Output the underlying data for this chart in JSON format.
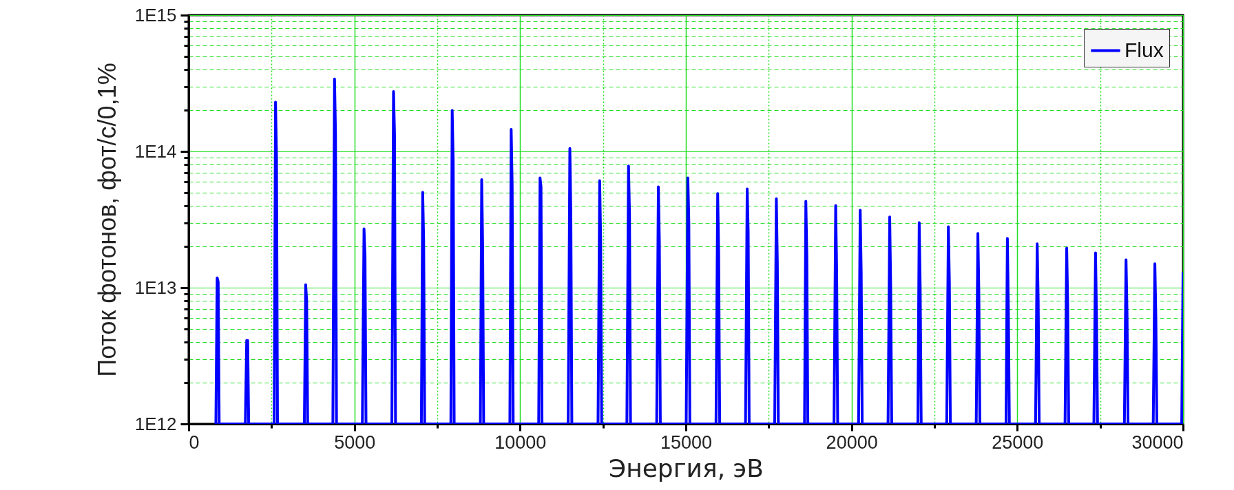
{
  "chart_data": {
    "type": "line",
    "xlabel": "Энергия, эВ",
    "ylabel": "Поток фотонов, фот/с/0,1%",
    "log": "y",
    "grid": true,
    "legend": "top right",
    "xlim": [
      0,
      30000
    ],
    "ylim": [
      1000000000000.0,
      1000000000000000.0
    ],
    "xticks": [
      0,
      {
        "value": 2500,
        "label": null
      },
      5000,
      {
        "value": 7500,
        "label": null
      },
      10000,
      {
        "value": 12500,
        "label": null
      },
      15000,
      {
        "value": 17500,
        "label": null
      },
      20000,
      {
        "value": 22500,
        "label": null
      },
      25000,
      {
        "value": 27500,
        "label": null
      },
      30000
    ],
    "yticks": [
      {
        "value": 1000000000000.0,
        "label": "1E12"
      },
      {
        "value": 2000000000000.0,
        "label": null
      },
      {
        "value": 3000000000000.0,
        "label": null
      },
      {
        "value": 4000000000000.0,
        "label": null
      },
      {
        "value": 5000000000000.0,
        "label": null
      },
      {
        "value": 6000000000000.0,
        "label": null
      },
      {
        "value": 7000000000000.0,
        "label": null
      },
      {
        "value": 8000000000000.0,
        "label": null
      },
      {
        "value": 9000000000000.0,
        "label": null
      },
      {
        "value": 10000000000000.0,
        "label": "1E13"
      },
      {
        "value": 20000000000000.0,
        "label": null
      },
      {
        "value": 30000000000000.0,
        "label": null
      },
      {
        "value": 40000000000000.0,
        "label": null
      },
      {
        "value": 50000000000000.0,
        "label": null
      },
      {
        "value": 60000000000000.0,
        "label": null
      },
      {
        "value": 70000000000000.0,
        "label": null
      },
      {
        "value": 80000000000000.0,
        "label": null
      },
      {
        "value": 90000000000000.0,
        "label": null
      },
      {
        "value": 100000000000000.0,
        "label": "1E14"
      },
      {
        "value": 200000000000000.0,
        "label": null
      },
      {
        "value": 300000000000000.0,
        "label": null
      },
      {
        "value": 400000000000000.0,
        "label": null
      },
      {
        "value": 500000000000000.0,
        "label": null
      },
      {
        "value": 600000000000000.0,
        "label": null
      },
      {
        "value": 700000000000000.0,
        "label": null
      },
      {
        "value": 800000000000000.0,
        "label": null
      },
      {
        "value": 900000000000000.0,
        "label": null
      },
      {
        "value": 1000000000000000.0,
        "label": "1E15"
      }
    ],
    "x": [
      820,
      860,
      890,
      920,
      1710,
      1750,
      1780,
      1810,
      2580,
      2620,
      2650,
      2680,
      3490,
      3530,
      3560,
      3590,
      4350,
      4400,
      4430,
      4460,
      5240,
      5290,
      5320,
      5350,
      6130,
      6180,
      6210,
      6240,
      7020,
      7060,
      7090,
      7120,
      7910,
      7950,
      7980,
      8010,
      8800,
      8840,
      8870,
      8900,
      9690,
      9730,
      9760,
      9790,
      10560,
      10600,
      10630,
      10660,
      11450,
      11500,
      11530,
      11560,
      12350,
      12400,
      12430,
      12460,
      13220,
      13270,
      13300,
      13330,
      14120,
      14170,
      14200,
      14230,
      15010,
      15060,
      15090,
      15120,
      15910,
      15960,
      15990,
      16020,
      16800,
      16850,
      16880,
      16910,
      17680,
      17730,
      17760,
      17790,
      18580,
      18620,
      18650,
      18680,
      19470,
      19520,
      19550,
      19580,
      20210,
      20260,
      20290,
      20320,
      21100,
      21150,
      21180,
      21210,
      22000,
      22040,
      22070,
      22100,
      22870,
      22920,
      22950,
      22980,
      23760,
      23810,
      23840,
      23870,
      24660,
      24700,
      24730,
      24760,
      25550,
      25600,
      25630,
      25660,
      26440,
      26490,
      26520,
      26550,
      27310,
      27360,
      27390,
      27420,
      28230,
      28280,
      28310,
      28340,
      29100,
      29150,
      29180,
      29210,
      29960,
      30000
    ],
    "series": [
      {
        "name": "Flux",
        "color": "#0000ff",
        "values": [
          1000000000000.0,
          11800000000000.0,
          11000000000000.0,
          1000000000000.0,
          1000000000000.0,
          4100000000000.0,
          4100000000000.0,
          1000000000000.0,
          1000000000000.0,
          230000000000000.0,
          90000000000000.0,
          1000000000000.0,
          1000000000000.0,
          10500000000000.0,
          8000000000000.0,
          1000000000000.0,
          1000000000000.0,
          340000000000000.0,
          135000000000000.0,
          1000000000000.0,
          1000000000000.0,
          27000000000000.0,
          17000000000000.0,
          1000000000000.0,
          1000000000000.0,
          275000000000000.0,
          135000000000000.0,
          1000000000000.0,
          1000000000000.0,
          50000000000000.0,
          22000000000000.0,
          1000000000000.0,
          1000000000000.0,
          200000000000000.0,
          85000000000000.0,
          1000000000000.0,
          1000000000000.0,
          62000000000000.0,
          20000000000000.0,
          1000000000000.0,
          1000000000000.0,
          145000000000000.0,
          55000000000000.0,
          1000000000000.0,
          1000000000000.0,
          64000000000000.0,
          55000000000000.0,
          1000000000000.0,
          1000000000000.0,
          105000000000000.0,
          35000000000000.0,
          1000000000000.0,
          1000000000000.0,
          61000000000000.0,
          22000000000000.0,
          1000000000000.0,
          1000000000000.0,
          78000000000000.0,
          34000000000000.0,
          1000000000000.0,
          1000000000000.0,
          55000000000000.0,
          22000000000000.0,
          1000000000000.0,
          1000000000000.0,
          64000000000000.0,
          30000000000000.0,
          1000000000000.0,
          1000000000000.0,
          49000000000000.0,
          18000000000000.0,
          1000000000000.0,
          1000000000000.0,
          53000000000000.0,
          26000000000000.0,
          1000000000000.0,
          1000000000000.0,
          45000000000000.0,
          15000000000000.0,
          1000000000000.0,
          1000000000000.0,
          43000000000000.0,
          17000000000000.0,
          1000000000000.0,
          1000000000000.0,
          40000000000000.0,
          13000000000000.0,
          1000000000000.0,
          1000000000000.0,
          37000000000000.0,
          13000000000000.0,
          1000000000000.0,
          1000000000000.0,
          33000000000000.0,
          10000000000000.0,
          1000000000000.0,
          1000000000000.0,
          30000000000000.0,
          10000000000000.0,
          1000000000000.0,
          1000000000000.0,
          28000000000000.0,
          11000000000000.0,
          1000000000000.0,
          1000000000000.0,
          25000000000000.0,
          9000000000000.0,
          1000000000000.0,
          1000000000000.0,
          23000000000000.0,
          7000000000000.0,
          1000000000000.0,
          1000000000000.0,
          21000000000000.0,
          8000000000000.0,
          1000000000000.0,
          1000000000000.0,
          19500000000000.0,
          7500000000000.0,
          1000000000000.0,
          1000000000000.0,
          18000000000000.0,
          6000000000000.0,
          1000000000000.0,
          1000000000000.0,
          16000000000000.0,
          6500000000000.0,
          1000000000000.0,
          1000000000000.0,
          15000000000000.0,
          6000000000000.0,
          1000000000000.0,
          1000000000000.0,
          13000000000000.0
        ]
      }
    ]
  }
}
